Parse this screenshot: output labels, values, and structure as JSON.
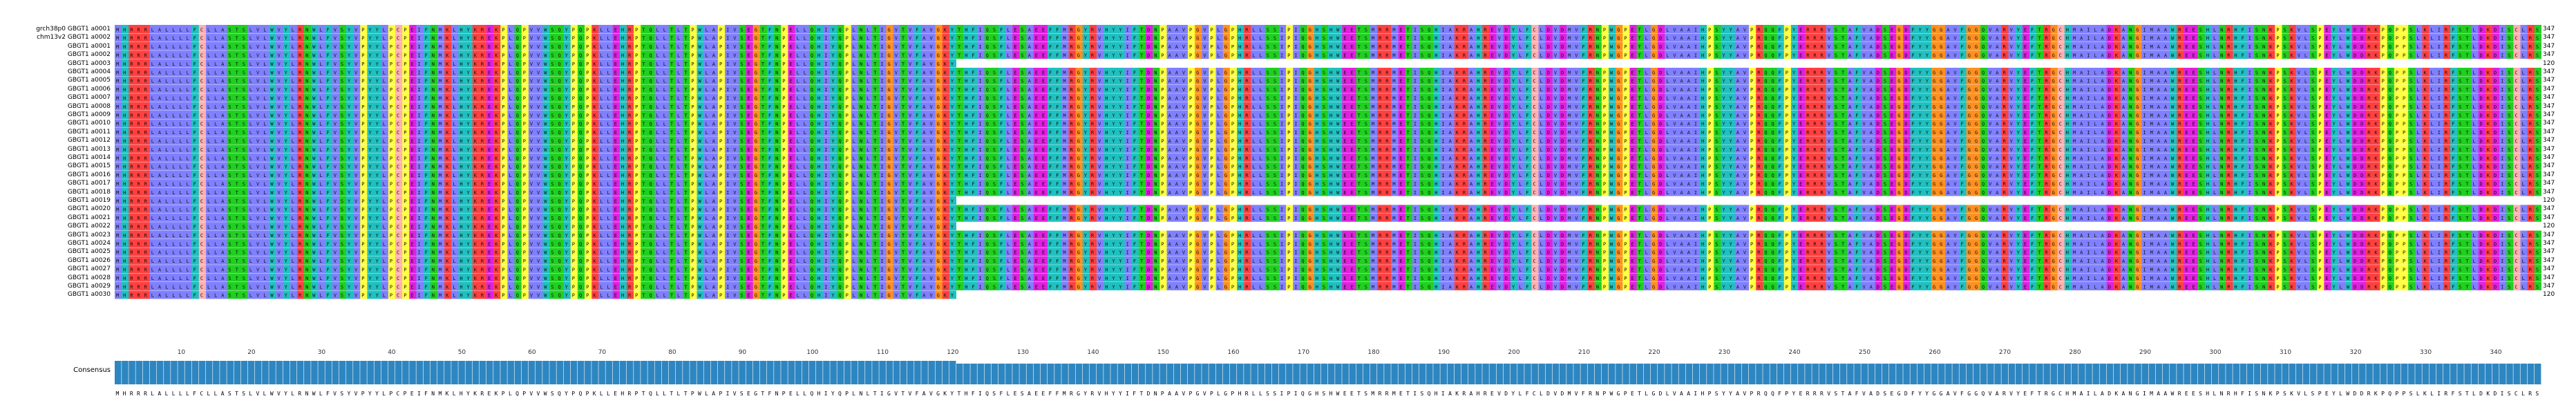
{
  "app": {
    "panel": "Jalview alignment panel"
  },
  "alignment": {
    "sequence_names": [
      "grch38p0 GBGT1 a0001",
      "chm13v2 GBGT1 a0002",
      "GBGT1 a0001",
      "GBGT1 a0002",
      "GBGT1 a0003",
      "GBGT1 a0004",
      "GBGT1 a0005",
      "GBGT1 a0006",
      "GBGT1 a0007",
      "GBGT1 a0008",
      "GBGT1 a0009",
      "GBGT1 a0010",
      "GBGT1 a0011",
      "GBGT1 a0012",
      "GBGT1 a0013",
      "GBGT1 a0014",
      "GBGT1 a0015",
      "GBGT1 a0016",
      "GBGT1 a0017",
      "GBGT1 a0018",
      "GBGT1 a0019",
      "GBGT1 a0020",
      "GBGT1 a0021",
      "GBGT1 a0022",
      "GBGT1 a0023",
      "GBGT1 a0024",
      "GBGT1 a0025",
      "GBGT1 a0026",
      "GBGT1 a0027",
      "GBGT1 a0028",
      "GBGT1 a0029",
      "GBGT1 a0030"
    ],
    "lengths": [
      "347",
      "347",
      "347",
      "347",
      "120",
      "347",
      "347",
      "347",
      "347",
      "347",
      "347",
      "347",
      "347",
      "347",
      "347",
      "347",
      "347",
      "347",
      "347",
      "347",
      "120",
      "347",
      "347",
      "120",
      "347",
      "347",
      "347",
      "347",
      "347",
      "347",
      "347",
      "120"
    ],
    "reference_sequence": "MHRRRLALLLLFCLLASTSLVLWVYLRNWLFVSYVPYYLPCPEIFNMKLHYKREKPLQPVVWSQYPQPKLLEHRPTQLLTLTPWLAPIVSEGTFNPELLQHIYQPLNLTIGVTVFAVGKYTHFIQSFLESAEEFFMRGYRVHYYIFTDNPAAVPGVPLGPHRLLSSIPIQGHSHWEETSMRRMETISQHIAKRAHREVDYLFCLDVDMVFRNPWGPETLGDLVAAIHPSYYAVPRQQFPYERRRVSTAFVADSEGDFYYGGAVFGGQVARVYEFTRGCHMAILADKANGIMAAWREESHLNRHFISNKPSKVLSPEYLWDDRKPQPPSLKLIRFSTLDKDISCLRS",
    "ruler_ticks": [
      "10",
      "20",
      "30",
      "40",
      "50",
      "60",
      "70",
      "80",
      "90",
      "100",
      "110",
      "120",
      "130",
      "140",
      "150",
      "160",
      "170",
      "180",
      "190",
      "200",
      "210",
      "220",
      "230",
      "240",
      "250",
      "260",
      "270",
      "280",
      "290",
      "300",
      "310",
      "320",
      "330",
      "340"
    ]
  },
  "colors": {
    "hydrophobic": "#8080ff",
    "positive": "#ff4040",
    "negative": "#e020e0",
    "polar": "#20d020",
    "cysteine": "#ffb0b0",
    "glycine": "#ff9020",
    "proline": "#ffff40",
    "aromatic": "#20c0c0",
    "conservation_bar": "#2e86c1",
    "gap": "#ffffff"
  },
  "consensus": {
    "label": "Consensus",
    "sequence": "MHRRRLALLLLFCLLASTSLVLWVYLRNWLFVSYVPYYLPCPEIFNMKLHYKREKPLQPVVWSQYPQPKLLEHRPTQLLTLTPWLAPIVSEGTFNPELLQHIYQPLNLTIGVTVFAVGKYTHFIQSFLESAEEFFMRGYRVHYYIFTDNPAAVPGVPLGPHRLLSSIPIQGHSHWEETSMRRMETISQHIAKRAHREVDYLFCLDVDMVFRNPWGPETLGDLVAAIHPSYYAVPRQQFPYERRRVSTAFVADSEGDFYYGGAVFGGQVARVYEFTRGCHMAILADKANGIMAAWREESHLNRHFISNKPSKVLSPEYLWDDRKPQPPSLKLIRFSTLDKDISCLRS"
  }
}
